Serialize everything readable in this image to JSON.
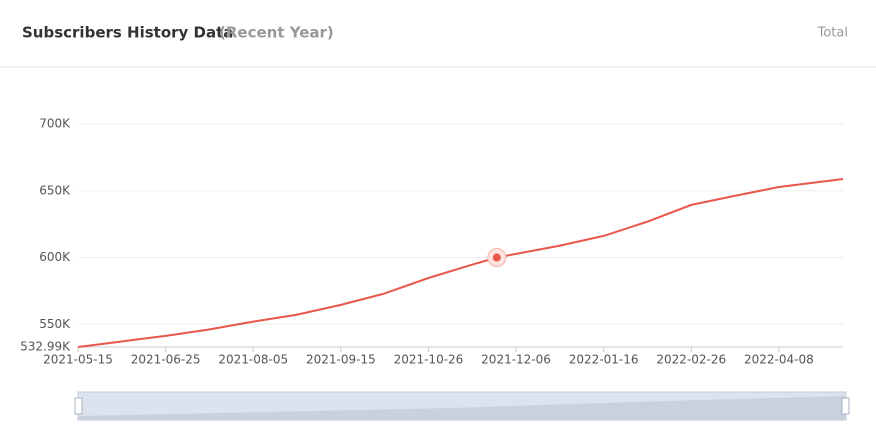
{
  "header": {
    "title": "Subscribers History Data",
    "subtitle": "(Recent Year)",
    "toggle": "Total"
  },
  "chart_data": {
    "type": "line",
    "x": [
      "2021-05-15",
      "2021-06-04",
      "2021-06-25",
      "2021-07-15",
      "2021-08-05",
      "2021-08-25",
      "2021-09-15",
      "2021-10-05",
      "2021-10-26",
      "2021-11-15",
      "2021-11-27",
      "2021-12-06",
      "2021-12-26",
      "2022-01-16",
      "2022-02-05",
      "2022-02-26",
      "2022-03-18",
      "2022-04-08",
      "2022-05-08"
    ],
    "series": [
      {
        "color": "#e8574a",
        "values": [
          533000,
          537000,
          541300,
          546000,
          552000,
          557000,
          564500,
          572800,
          584700,
          594500,
          600000,
          602700,
          608700,
          616200,
          626600,
          639400,
          646100,
          652800,
          658800
        ]
      }
    ],
    "xlim": [
      "2021-05-15",
      "2022-05-08"
    ],
    "xticks": [
      "2021-05-15",
      "2021-06-25",
      "2021-08-05",
      "2021-09-15",
      "2021-10-26",
      "2021-12-06",
      "2022-01-16",
      "2022-02-26",
      "2022-04-08"
    ],
    "ylim": [
      532990,
      700000
    ],
    "yticks": [
      {
        "value": 532990,
        "label": "532.99K"
      },
      {
        "value": 550000,
        "label": "550K"
      },
      {
        "value": 600000,
        "label": "600K"
      },
      {
        "value": 650000,
        "label": "650K"
      },
      {
        "value": 700000,
        "label": "700K"
      }
    ],
    "grid": true
  }
}
